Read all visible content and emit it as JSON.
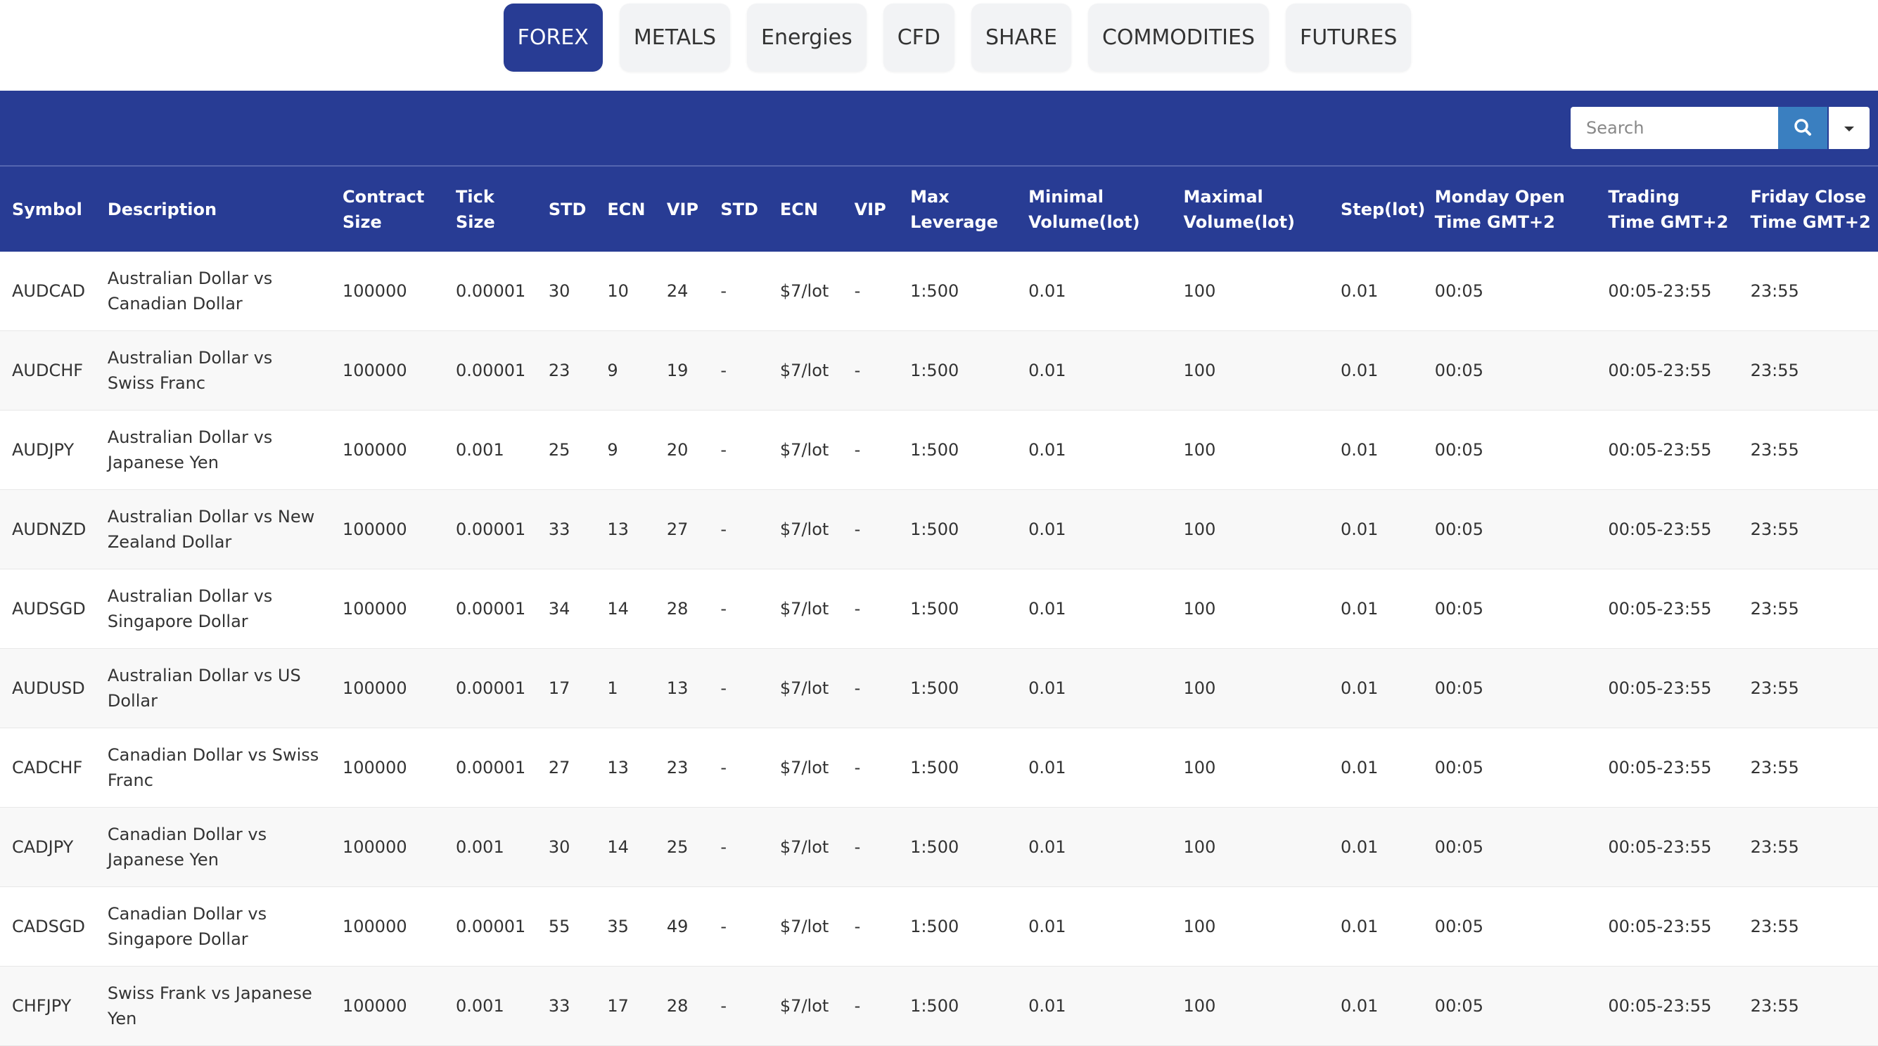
{
  "tabs": [
    "FOREX",
    "METALS",
    "Energies",
    "CFD",
    "SHARE",
    "COMMODITIES",
    "FUTURES"
  ],
  "active_tab": 0,
  "search": {
    "placeholder": "Search"
  },
  "table": {
    "header": [
      "Symbol",
      "Description",
      "Contract Size",
      "Tick Size",
      "STD",
      "ECN",
      "VIP",
      "STD",
      "ECN",
      "VIP",
      "Max Leverage",
      "Minimal Volume(lot)",
      "Maximal Volume(lot)",
      "Step(lot)",
      "Monday Open Time GMT+2",
      "Trading Time GMT+2",
      "Friday Close Time GMT+2"
    ],
    "rows": [
      [
        "AUDCAD",
        "Australian Dollar vs Canadian Dollar",
        "100000",
        "0.00001",
        "30",
        "10",
        "24",
        "-",
        "$7/lot",
        "-",
        "1:500",
        "0.01",
        "100",
        "0.01",
        "00:05",
        "00:05-23:55",
        "23:55"
      ],
      [
        "AUDCHF",
        "Australian Dollar vs Swiss Franc",
        "100000",
        "0.00001",
        "23",
        "9",
        "19",
        "-",
        "$7/lot",
        "-",
        "1:500",
        "0.01",
        "100",
        "0.01",
        "00:05",
        "00:05-23:55",
        "23:55"
      ],
      [
        "AUDJPY",
        "Australian Dollar vs Japanese Yen",
        "100000",
        "0.001",
        "25",
        "9",
        "20",
        "-",
        "$7/lot",
        "-",
        "1:500",
        "0.01",
        "100",
        "0.01",
        "00:05",
        "00:05-23:55",
        "23:55"
      ],
      [
        "AUDNZD",
        "Australian Dollar vs New Zealand Dollar",
        "100000",
        "0.00001",
        "33",
        "13",
        "27",
        "-",
        "$7/lot",
        "-",
        "1:500",
        "0.01",
        "100",
        "0.01",
        "00:05",
        "00:05-23:55",
        "23:55"
      ],
      [
        "AUDSGD",
        "Australian Dollar vs Singapore Dollar",
        "100000",
        "0.00001",
        "34",
        "14",
        "28",
        "-",
        "$7/lot",
        "-",
        "1:500",
        "0.01",
        "100",
        "0.01",
        "00:05",
        "00:05-23:55",
        "23:55"
      ],
      [
        "AUDUSD",
        "Australian Dollar vs US Dollar",
        "100000",
        "0.00001",
        "17",
        "1",
        "13",
        "-",
        "$7/lot",
        "-",
        "1:500",
        "0.01",
        "100",
        "0.01",
        "00:05",
        "00:05-23:55",
        "23:55"
      ],
      [
        "CADCHF",
        "Canadian Dollar vs Swiss Franc",
        "100000",
        "0.00001",
        "27",
        "13",
        "23",
        "-",
        "$7/lot",
        "-",
        "1:500",
        "0.01",
        "100",
        "0.01",
        "00:05",
        "00:05-23:55",
        "23:55"
      ],
      [
        "CADJPY",
        "Canadian Dollar vs Japanese Yen",
        "100000",
        "0.001",
        "30",
        "14",
        "25",
        "-",
        "$7/lot",
        "-",
        "1:500",
        "0.01",
        "100",
        "0.01",
        "00:05",
        "00:05-23:55",
        "23:55"
      ],
      [
        "CADSGD",
        "Canadian Dollar vs Singapore Dollar",
        "100000",
        "0.00001",
        "55",
        "35",
        "49",
        "-",
        "$7/lot",
        "-",
        "1:500",
        "0.01",
        "100",
        "0.01",
        "00:05",
        "00:05-23:55",
        "23:55"
      ],
      [
        "CHFJPY",
        "Swiss Frank vs Japanese Yen",
        "100000",
        "0.001",
        "33",
        "17",
        "28",
        "-",
        "$7/lot",
        "-",
        "1:500",
        "0.01",
        "100",
        "0.01",
        "00:05",
        "00:05-23:55",
        "23:55"
      ]
    ]
  }
}
